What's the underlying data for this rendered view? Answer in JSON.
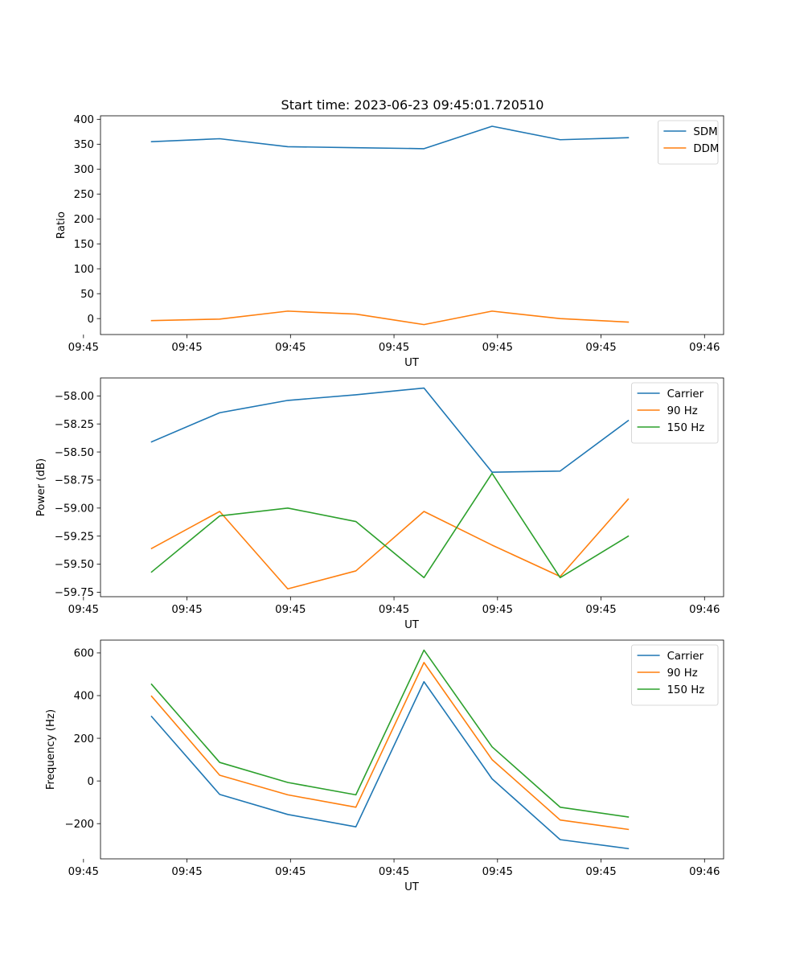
{
  "figure": {
    "title": "Start time: 2023-06-23 09:45:01.720510"
  },
  "chart_data": [
    {
      "type": "line",
      "xlabel": "UT",
      "ylabel": "Ratio",
      "x": [
        1,
        2,
        3,
        4,
        5,
        6,
        7,
        8
      ],
      "xlim": [
        0.25,
        9.4
      ],
      "ylim": [
        -32,
        407
      ],
      "grid": false,
      "legend_position": "top-right",
      "xticks": [
        {
          "pos": 0,
          "label": "09:45"
        },
        {
          "pos": 1.52,
          "label": "09:45"
        },
        {
          "pos": 3.04,
          "label": "09:45"
        },
        {
          "pos": 4.56,
          "label": "09:45"
        },
        {
          "pos": 6.08,
          "label": "09:45"
        },
        {
          "pos": 7.6,
          "label": "09:45"
        },
        {
          "pos": 9.12,
          "label": "09:46"
        }
      ],
      "yticks": [
        {
          "value": 0,
          "label": "0"
        },
        {
          "value": 50,
          "label": "50"
        },
        {
          "value": 100,
          "label": "100"
        },
        {
          "value": 150,
          "label": "150"
        },
        {
          "value": 200,
          "label": "200"
        },
        {
          "value": 250,
          "label": "250"
        },
        {
          "value": 300,
          "label": "300"
        },
        {
          "value": 350,
          "label": "350"
        },
        {
          "value": 400,
          "label": "400"
        }
      ],
      "series": [
        {
          "name": "SDM",
          "color": "#1f77b4",
          "values": [
            355,
            361,
            345,
            343,
            341,
            386,
            359,
            363
          ]
        },
        {
          "name": "DDM",
          "color": "#ff7f0e",
          "values": [
            -4,
            -1,
            15,
            9,
            -12,
            15,
            0,
            -7
          ]
        }
      ]
    },
    {
      "type": "line",
      "xlabel": "UT",
      "ylabel": "Power (dB)",
      "x": [
        1,
        2,
        3,
        4,
        5,
        6,
        7,
        8
      ],
      "xlim": [
        0.25,
        9.4
      ],
      "ylim": [
        -59.79,
        -57.84
      ],
      "grid": false,
      "legend_position": "top-right",
      "xticks": [
        {
          "pos": 0,
          "label": "09:45"
        },
        {
          "pos": 1.52,
          "label": "09:45"
        },
        {
          "pos": 3.04,
          "label": "09:45"
        },
        {
          "pos": 4.56,
          "label": "09:45"
        },
        {
          "pos": 6.08,
          "label": "09:45"
        },
        {
          "pos": 7.6,
          "label": "09:45"
        },
        {
          "pos": 9.12,
          "label": "09:46"
        }
      ],
      "yticks": [
        {
          "value": -59.75,
          "label": "−59.75"
        },
        {
          "value": -59.5,
          "label": "−59.50"
        },
        {
          "value": -59.25,
          "label": "−59.25"
        },
        {
          "value": -59.0,
          "label": "−59.00"
        },
        {
          "value": -58.75,
          "label": "−58.75"
        },
        {
          "value": -58.5,
          "label": "−58.50"
        },
        {
          "value": -58.25,
          "label": "−58.25"
        },
        {
          "value": -58.0,
          "label": "−58.00"
        }
      ],
      "series": [
        {
          "name": "Carrier",
          "color": "#1f77b4",
          "values": [
            -58.41,
            -58.15,
            -58.04,
            -57.99,
            -57.93,
            -58.68,
            -58.67,
            -58.22
          ]
        },
        {
          "name": "90 Hz",
          "color": "#ff7f0e",
          "values": [
            -59.36,
            -59.03,
            -59.72,
            -59.56,
            -59.03,
            -59.33,
            -59.61,
            -58.92
          ]
        },
        {
          "name": "150 Hz",
          "color": "#2ca02c",
          "values": [
            -59.57,
            -59.07,
            -59.0,
            -59.12,
            -59.62,
            -58.69,
            -59.62,
            -59.25
          ]
        }
      ]
    },
    {
      "type": "line",
      "xlabel": "UT",
      "ylabel": "Frequency (Hz)",
      "x": [
        1,
        2,
        3,
        4,
        5,
        6,
        7,
        8
      ],
      "xlim": [
        0.25,
        9.4
      ],
      "ylim": [
        -365,
        660
      ],
      "grid": false,
      "legend_position": "top-right",
      "xticks": [
        {
          "pos": 0,
          "label": "09:45"
        },
        {
          "pos": 1.52,
          "label": "09:45"
        },
        {
          "pos": 3.04,
          "label": "09:45"
        },
        {
          "pos": 4.56,
          "label": "09:45"
        },
        {
          "pos": 6.08,
          "label": "09:45"
        },
        {
          "pos": 7.6,
          "label": "09:45"
        },
        {
          "pos": 9.12,
          "label": "09:46"
        }
      ],
      "yticks": [
        {
          "value": -200,
          "label": "−200"
        },
        {
          "value": 0,
          "label": "0"
        },
        {
          "value": 200,
          "label": "200"
        },
        {
          "value": 400,
          "label": "400"
        },
        {
          "value": 600,
          "label": "600"
        }
      ],
      "series": [
        {
          "name": "Carrier",
          "color": "#1f77b4",
          "values": [
            302,
            -63,
            -157,
            -215,
            465,
            10,
            -275,
            -317
          ]
        },
        {
          "name": "90 Hz",
          "color": "#ff7f0e",
          "values": [
            397,
            27,
            -65,
            -123,
            555,
            100,
            -183,
            -227
          ]
        },
        {
          "name": "150 Hz",
          "color": "#2ca02c",
          "values": [
            453,
            87,
            -7,
            -65,
            613,
            160,
            -123,
            -169
          ]
        }
      ]
    }
  ]
}
